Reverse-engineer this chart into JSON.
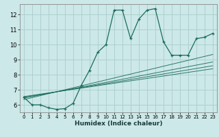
{
  "xlabel": "Humidex (Indice chaleur)",
  "bg_color": "#cce8e8",
  "grid_color": "#aacccc",
  "line_color": "#1a6b5a",
  "xlim": [
    -0.5,
    23.5
  ],
  "ylim": [
    5.5,
    12.7
  ],
  "yticks": [
    6,
    7,
    8,
    9,
    10,
    11,
    12
  ],
  "xticks": [
    0,
    1,
    2,
    3,
    4,
    5,
    6,
    7,
    8,
    9,
    10,
    11,
    12,
    13,
    14,
    15,
    16,
    17,
    18,
    19,
    20,
    21,
    22,
    23
  ],
  "main_series_x": [
    0,
    1,
    2,
    3,
    4,
    5,
    6,
    7,
    8,
    9,
    10,
    11,
    12,
    13,
    14,
    15,
    16,
    17,
    18,
    19,
    20,
    21,
    22,
    23
  ],
  "main_series_y": [
    6.5,
    6.0,
    6.0,
    5.8,
    5.7,
    5.75,
    6.1,
    7.3,
    8.3,
    9.5,
    10.0,
    12.3,
    12.3,
    10.4,
    11.7,
    12.3,
    12.4,
    10.2,
    9.3,
    9.3,
    9.3,
    10.4,
    10.5,
    10.75
  ],
  "regression_lines": [
    {
      "x0": 0,
      "y0": 6.35,
      "x1": 23,
      "y1": 9.35
    },
    {
      "x0": 0,
      "y0": 6.45,
      "x1": 23,
      "y1": 8.85
    },
    {
      "x0": 0,
      "y0": 6.5,
      "x1": 23,
      "y1": 8.6
    },
    {
      "x0": 0,
      "y0": 6.55,
      "x1": 23,
      "y1": 8.4
    }
  ]
}
